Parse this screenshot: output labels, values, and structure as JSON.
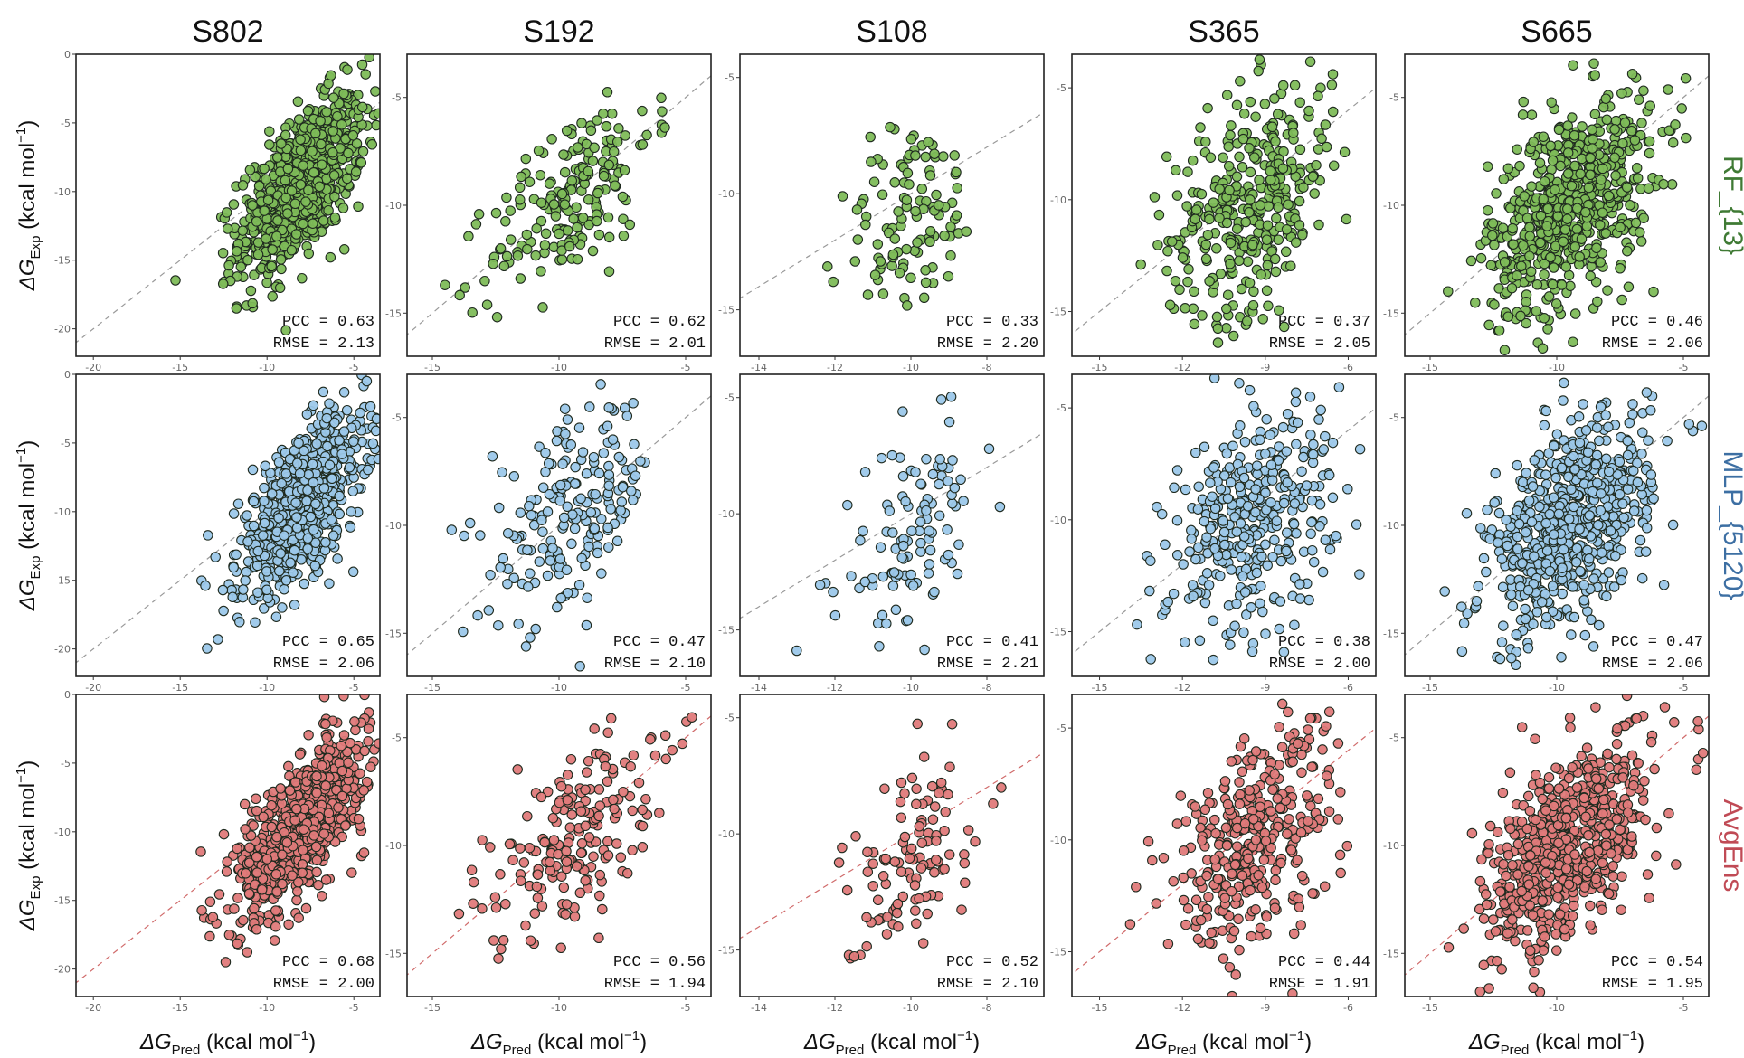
{
  "chart_data": {
    "type": "scatter",
    "title": "",
    "columns": [
      "S802",
      "S192",
      "S108",
      "S365",
      "S665"
    ],
    "rows": [
      {
        "name": "RF_{13}",
        "color": "#7ebc59",
        "line_color": "#999999"
      },
      {
        "name": "MLP_{5120}",
        "color": "#9cc8ea",
        "line_color": "#999999"
      },
      {
        "name": "AvgEns",
        "color": "#e07a7a",
        "line_color": "#d06a6a"
      }
    ],
    "xlabel": {
      "symbol": "ΔG",
      "sub": "Pred",
      "unit": " (kcal mol",
      "sup": "−1",
      "close": ")"
    },
    "ylabel": {
      "symbol": "ΔG",
      "sub": "Exp",
      "unit": " (kcal mol",
      "sup": "−1",
      "close": ")"
    },
    "datasets": {
      "S802": {
        "n": 802,
        "xlim": [
          -21,
          -3.5
        ],
        "ylim": [
          -22,
          0
        ],
        "xticks": [
          -20,
          -15,
          -10,
          -5
        ],
        "yticks": [
          0,
          -5,
          -10,
          -15,
          -20
        ],
        "cx": -8.0,
        "cy": -9.5,
        "sx": 1.8,
        "sy": 3.2
      },
      "S192": {
        "n": 192,
        "xlim": [
          -16,
          -4
        ],
        "ylim": [
          -17,
          -3
        ],
        "xticks": [
          -15,
          -10,
          -5
        ],
        "yticks": [
          -5,
          -10,
          -15
        ],
        "cx": -9.5,
        "cy": -9.5,
        "sx": 1.6,
        "sy": 2.4
      },
      "S108": {
        "n": 108,
        "xlim": [
          -14.5,
          -6.5
        ],
        "ylim": [
          -17,
          -4
        ],
        "xticks": [
          -14,
          -12,
          -10,
          -8
        ],
        "yticks": [
          -5,
          -10,
          -15
        ],
        "cx": -10.0,
        "cy": -11.0,
        "sx": 0.9,
        "sy": 2.2
      },
      "S365": {
        "n": 365,
        "xlim": [
          -16,
          -5
        ],
        "ylim": [
          -17,
          -3.5
        ],
        "xticks": [
          -15,
          -12,
          -9,
          -6
        ],
        "yticks": [
          -5,
          -10,
          -15
        ],
        "cx": -9.5,
        "cy": -10.0,
        "sx": 1.5,
        "sy": 2.6
      },
      "S665": {
        "n": 665,
        "xlim": [
          -16,
          -4
        ],
        "ylim": [
          -17,
          -3
        ],
        "xticks": [
          -15,
          -10,
          -5
        ],
        "yticks": [
          -5,
          -10,
          -15
        ],
        "cx": -9.5,
        "cy": -10.0,
        "sx": 1.6,
        "sy": 2.5
      }
    },
    "stats": {
      "RF_{13}": [
        {
          "pcc": "0.63",
          "rmse": "2.13"
        },
        {
          "pcc": "0.62",
          "rmse": "2.01"
        },
        {
          "pcc": "0.33",
          "rmse": "2.20"
        },
        {
          "pcc": "0.37",
          "rmse": "2.05"
        },
        {
          "pcc": "0.46",
          "rmse": "2.06"
        }
      ],
      "MLP_{5120}": [
        {
          "pcc": "0.65",
          "rmse": "2.06"
        },
        {
          "pcc": "0.47",
          "rmse": "2.10"
        },
        {
          "pcc": "0.41",
          "rmse": "2.21"
        },
        {
          "pcc": "0.38",
          "rmse": "2.00"
        },
        {
          "pcc": "0.47",
          "rmse": "2.06"
        }
      ],
      "AvgEns": [
        {
          "pcc": "0.68",
          "rmse": "2.00"
        },
        {
          "pcc": "0.56",
          "rmse": "1.94"
        },
        {
          "pcc": "0.52",
          "rmse": "2.10"
        },
        {
          "pcc": "0.44",
          "rmse": "1.91"
        },
        {
          "pcc": "0.54",
          "rmse": "1.95"
        }
      ]
    },
    "pcc_label": "PCC = ",
    "rmse_label": "RMSE = ",
    "reference_line": "y = x (dashed)"
  }
}
